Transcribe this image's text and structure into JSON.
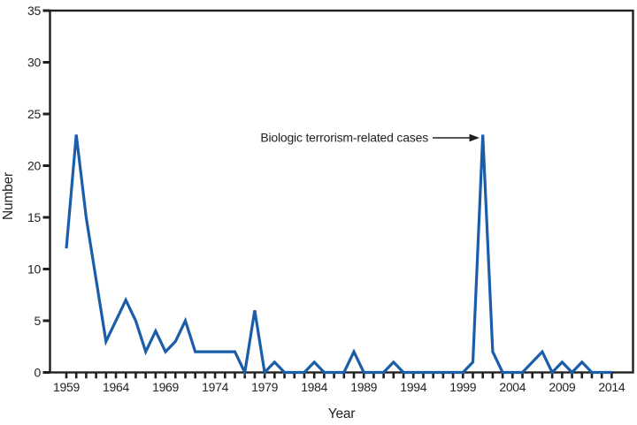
{
  "figure": {
    "annotation_label": "Biologic terrorism-related cases",
    "colors": {
      "line": "#1A5DA9",
      "axis": "#231F20",
      "text": "#231F20",
      "background": "#FFFFFF"
    }
  },
  "chart_data": {
    "type": "line",
    "title": "",
    "xlabel": "Year",
    "ylabel": "Number",
    "ylim": [
      0,
      35
    ],
    "yticks": [
      0,
      5,
      10,
      15,
      20,
      25,
      30,
      35
    ],
    "xtick_label_interval": 5,
    "xtick_labels": [
      "1959",
      "1964",
      "1969",
      "1974",
      "1979",
      "1984",
      "1989",
      "1994",
      "1999",
      "2004",
      "2009",
      "2014"
    ],
    "grid": false,
    "legend": null,
    "x": [
      1959,
      1960,
      1961,
      1962,
      1963,
      1964,
      1965,
      1966,
      1967,
      1968,
      1969,
      1970,
      1971,
      1972,
      1973,
      1974,
      1975,
      1976,
      1977,
      1978,
      1979,
      1980,
      1981,
      1982,
      1983,
      1984,
      1985,
      1986,
      1987,
      1988,
      1989,
      1990,
      1991,
      1992,
      1993,
      1994,
      1995,
      1996,
      1997,
      1998,
      1999,
      2000,
      2001,
      2002,
      2003,
      2004,
      2005,
      2006,
      2007,
      2008,
      2009,
      2010,
      2011,
      2012,
      2013,
      2014
    ],
    "values": [
      12,
      23,
      15,
      9,
      3,
      5,
      7,
      5,
      2,
      4,
      2,
      3,
      5,
      2,
      2,
      2,
      2,
      2,
      0,
      6,
      0,
      1,
      0,
      0,
      0,
      1,
      0,
      0,
      0,
      2,
      0,
      0,
      0,
      1,
      0,
      0,
      0,
      0,
      0,
      0,
      0,
      1,
      23,
      2,
      0,
      0,
      0,
      1,
      2,
      0,
      1,
      0,
      1,
      0,
      0,
      0
    ],
    "annotation": {
      "text": "Biologic terrorism-related cases",
      "points_to_x": 2001,
      "points_to_y": 23
    }
  }
}
